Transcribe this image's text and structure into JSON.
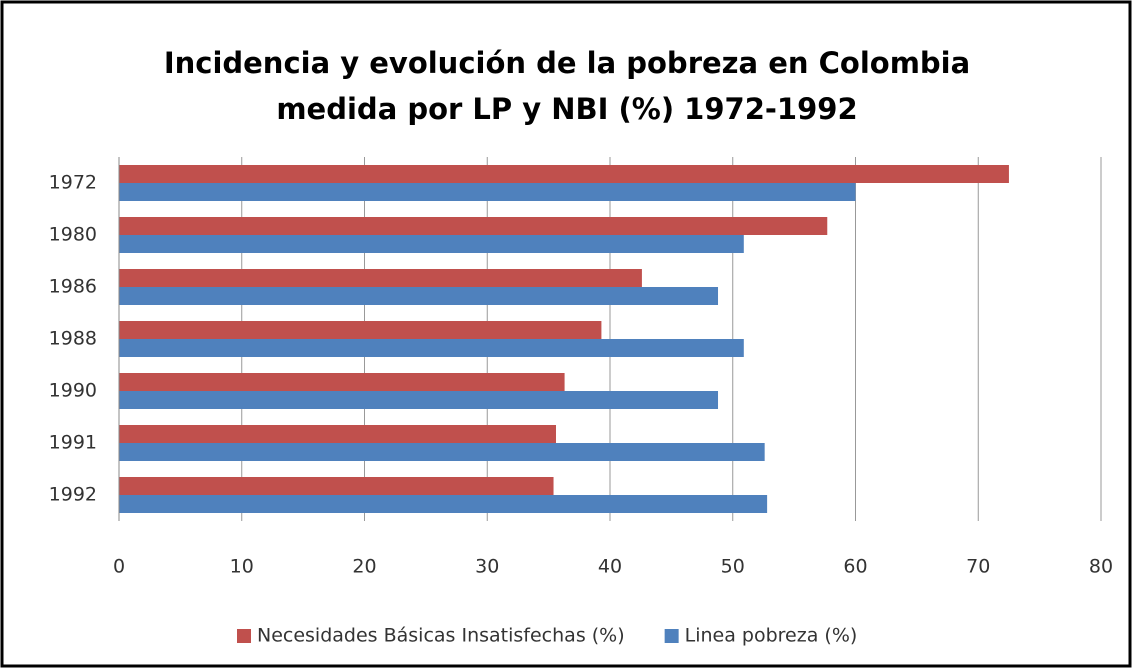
{
  "chart_data": {
    "type": "barh",
    "title": "Incidencia y evolución de la pobreza en Colombia medida por LP y NBI (%) 1972-1992",
    "categories": [
      "1972",
      "1980",
      "1986",
      "1988",
      "1990",
      "1991",
      "1992"
    ],
    "series": [
      {
        "name": "Necesidades Básicas Insatisfechas (%)",
        "color": "#c0504d",
        "values": [
          72.5,
          57.7,
          42.6,
          39.3,
          36.3,
          35.6,
          35.4
        ]
      },
      {
        "name": "Linea pobreza (%)",
        "color": "#4f81bd",
        "values": [
          60.0,
          50.9,
          48.8,
          50.9,
          48.8,
          52.6,
          52.8
        ]
      }
    ],
    "xlim": [
      0,
      80
    ],
    "xticks": [
      0,
      10,
      20,
      30,
      40,
      50,
      60,
      70,
      80
    ],
    "grid": true,
    "legend": "bottom"
  }
}
